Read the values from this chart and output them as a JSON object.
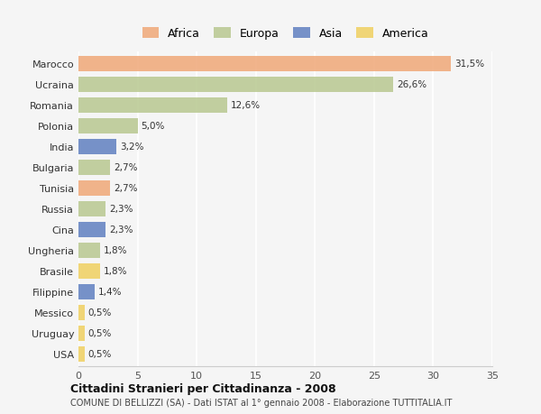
{
  "categories": [
    "Marocco",
    "Ucraina",
    "Romania",
    "Polonia",
    "India",
    "Bulgaria",
    "Tunisia",
    "Russia",
    "Cina",
    "Ungheria",
    "Brasile",
    "Filippine",
    "Messico",
    "Uruguay",
    "USA"
  ],
  "values": [
    31.5,
    26.6,
    12.6,
    5.0,
    3.2,
    2.7,
    2.7,
    2.3,
    2.3,
    1.8,
    1.8,
    1.4,
    0.5,
    0.5,
    0.5
  ],
  "labels": [
    "31,5%",
    "26,6%",
    "12,6%",
    "5,0%",
    "3,2%",
    "2,7%",
    "2,7%",
    "2,3%",
    "2,3%",
    "1,8%",
    "1,8%",
    "1,4%",
    "0,5%",
    "0,5%",
    "0,5%"
  ],
  "continents": [
    "Africa",
    "Europa",
    "Europa",
    "Europa",
    "Asia",
    "Europa",
    "Africa",
    "Europa",
    "Asia",
    "Europa",
    "America",
    "Asia",
    "America",
    "America",
    "America"
  ],
  "colors": {
    "Africa": "#F0A878",
    "Europa": "#B8C890",
    "Asia": "#6080C0",
    "America": "#F0D060"
  },
  "legend_order": [
    "Africa",
    "Europa",
    "Asia",
    "America"
  ],
  "title": "Cittadini Stranieri per Cittadinanza - 2008",
  "subtitle": "COMUNE DI BELLIZZI (SA) - Dati ISTAT al 1° gennaio 2008 - Elaborazione TUTTITALIA.IT",
  "xlim": [
    0,
    35
  ],
  "xticks": [
    0,
    5,
    10,
    15,
    20,
    25,
    30,
    35
  ],
  "bg_color": "#f5f5f5",
  "grid_color": "#ffffff"
}
